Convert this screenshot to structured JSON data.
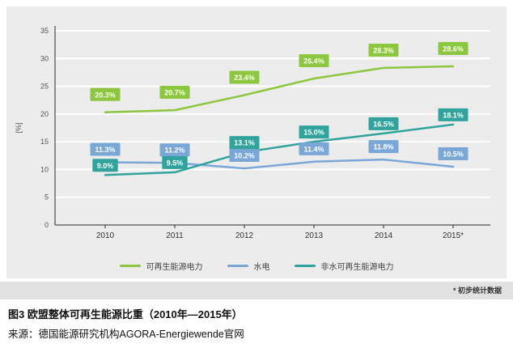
{
  "chart_data": {
    "type": "line",
    "title": "图3 欧盟整体可再生能源比重（2010年—2015年）",
    "xlabel": "",
    "ylabel": "[%]",
    "x": [
      "2010",
      "2011",
      "2012",
      "2013",
      "2014",
      "2015*"
    ],
    "y_ticks": [
      0,
      5,
      10,
      15,
      20,
      25,
      30,
      35
    ],
    "ylim": [
      0,
      35
    ],
    "grid": true,
    "legend_position": "bottom",
    "background": "#ececec",
    "series": [
      {
        "name": "可再生能源电力",
        "color": "#8dc63f",
        "values": [
          20.3,
          20.7,
          23.4,
          26.4,
          28.3,
          28.6
        ]
      },
      {
        "name": "水电",
        "color": "#7ba7d7",
        "values": [
          11.3,
          11.2,
          10.2,
          11.4,
          11.8,
          10.5
        ]
      },
      {
        "name": "非水可再生能源电力",
        "color": "#31a39d",
        "values": [
          9.0,
          9.5,
          13.1,
          15.0,
          16.5,
          18.1
        ]
      }
    ],
    "annotation": "* 初步统计数据"
  },
  "footnote": "* 初步统计数据",
  "caption": {
    "title": "图3 欧盟整体可再生能源比重（2010年—2015年）",
    "source": "来源：德国能源研究机构AGORA-Energiewende官网"
  }
}
